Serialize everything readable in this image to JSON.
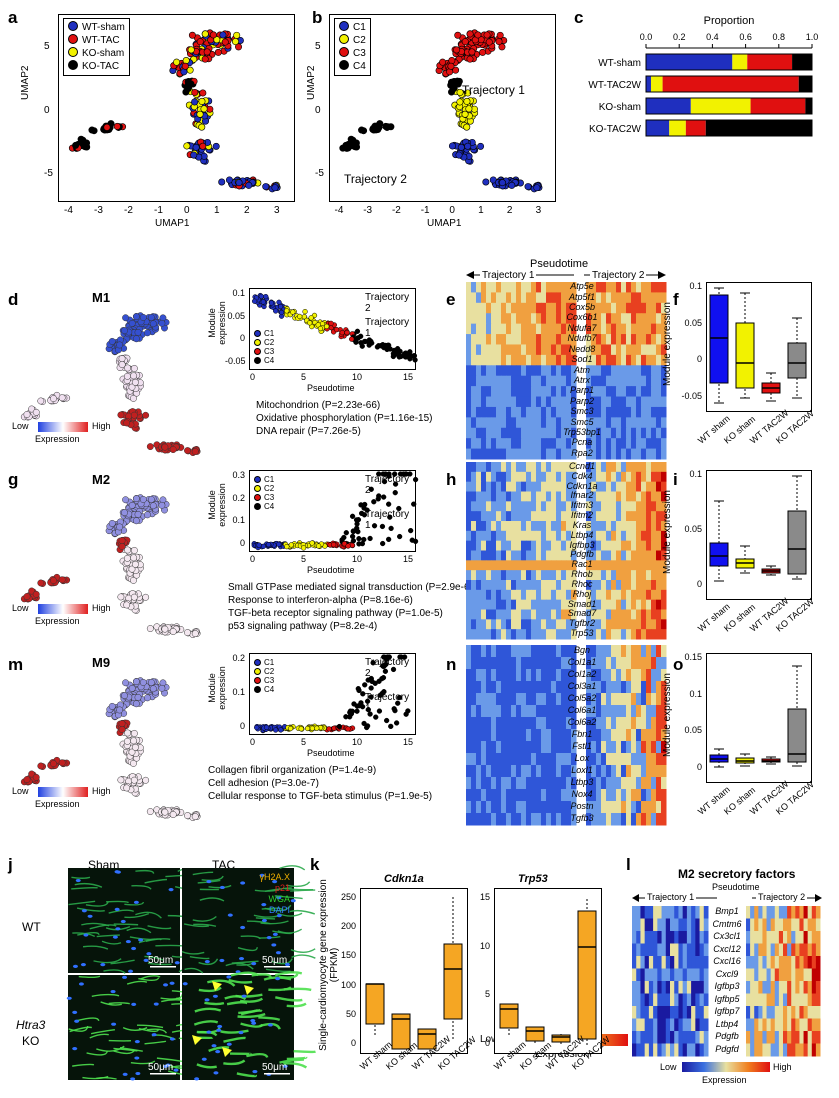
{
  "panels": {
    "a": "a",
    "b": "b",
    "c": "c",
    "d": "d",
    "e": "e",
    "f": "f",
    "g": "g",
    "h": "h",
    "i": "i",
    "m": "m",
    "n": "n",
    "o": "o",
    "j": "j",
    "k": "k",
    "l": "l"
  },
  "umap": {
    "xlabel": "UMAP1",
    "ylabel": "UMAP2",
    "xticks": [
      "-4",
      "-3",
      "-2",
      "-1",
      "0",
      "1",
      "2",
      "3"
    ],
    "yticks": [
      "5",
      "0",
      "-5"
    ],
    "legend_a": [
      {
        "label": "WT-sham",
        "color": "#1f2fbf"
      },
      {
        "label": "WT-TAC",
        "color": "#e01010"
      },
      {
        "label": "KO-sham",
        "color": "#f2f200"
      },
      {
        "label": "KO-TAC",
        "color": "#000000"
      }
    ],
    "legend_b": [
      {
        "label": "C1",
        "color": "#1f2fbf"
      },
      {
        "label": "C2",
        "color": "#f2f200"
      },
      {
        "label": "C3",
        "color": "#e01010"
      },
      {
        "label": "C4",
        "color": "#000000"
      }
    ],
    "traj1": "Trajectory 1",
    "traj2": "Trajectory 2"
  },
  "chart_data": [
    {
      "type": "bar",
      "title": "Proportion",
      "categories": [
        "WT-sham",
        "WT-TAC2W",
        "KO-sham",
        "KO-TAC2W"
      ],
      "xticks": [
        "0.0",
        "0.2",
        "0.4",
        "0.6",
        "0.8",
        "1.0"
      ],
      "xlim": [
        0,
        1
      ],
      "series": [
        {
          "name": "C1",
          "color": "#1f2fbf",
          "values": [
            0.52,
            0.03,
            0.27,
            0.14
          ]
        },
        {
          "name": "C2",
          "color": "#f2f200",
          "values": [
            0.09,
            0.07,
            0.36,
            0.1
          ]
        },
        {
          "name": "C3",
          "color": "#e01010",
          "values": [
            0.27,
            0.82,
            0.33,
            0.12
          ]
        },
        {
          "name": "C4",
          "color": "#000000",
          "values": [
            0.12,
            0.08,
            0.04,
            0.64
          ]
        }
      ]
    }
  ],
  "modules": [
    {
      "name": "M1",
      "ylabel": "Module expression",
      "yticks": [
        "0.1",
        "0.05",
        "0",
        "-0.05"
      ],
      "xticks": [
        "0",
        "5",
        "10",
        "15"
      ],
      "xlabel": "Pseudotime",
      "traj2": "Trajectory 2",
      "traj1": "Trajectory 1",
      "legend": [
        "C1",
        "C2",
        "C3",
        "C4"
      ],
      "go": [
        "Mitochondrion (P=2.23e-66)",
        "Oxidative phosphorylation (P=1.16e-15)",
        "DNA repair (P=7.26e-5)"
      ],
      "genes": [
        "Atp5e",
        "Atp5f1",
        "Cox5b",
        "Cox6b1",
        "Ndufa7",
        "Ndufb7",
        "Nedd8",
        "Sod1",
        "Atm",
        "Atrx",
        "Parp1",
        "Parp2",
        "Smc3",
        "Smc5",
        "Trp53bp1",
        "Pcna",
        "Rpa2"
      ],
      "box_yticks": [
        "0.1",
        "0.05",
        "0",
        "-0.05"
      ]
    },
    {
      "name": "M2",
      "ylabel": "Module expression",
      "yticks": [
        "0.3",
        "0.2",
        "0.1",
        "0"
      ],
      "xticks": [
        "0",
        "5",
        "10",
        "15"
      ],
      "xlabel": "Pseudotime",
      "traj2": "Trajectory 2",
      "traj1": "Trajectory 1",
      "legend": [
        "C1",
        "C2",
        "C3",
        "C4"
      ],
      "go": [
        "Small GTPase mediated signal transduction (P=2.9e-6)",
        "Response to interferon-alpha (P=8.16e-6)",
        "TGF-beta receptor signaling pathway (P=1.0e-5)",
        "p53 signaling pathway (P=8.2e-4)"
      ],
      "genes": [
        "Ccnd1",
        "Cdk4",
        "Cdkn1a",
        "Ifnar2",
        "Ifitm3",
        "Ifitm2",
        "Kras",
        "Ltbp4",
        "Igfbp3",
        "Pdgfb",
        "Rac1",
        "Rhob",
        "Rhoc",
        "Rhoj",
        "Smad1",
        "Smad7",
        "Tgfbr2",
        "Trp53"
      ],
      "box_yticks": [
        "0.1",
        "0.05",
        "0"
      ]
    },
    {
      "name": "M9",
      "ylabel": "Module expression",
      "yticks": [
        "0.2",
        "0.1",
        "0"
      ],
      "xticks": [
        "0",
        "5",
        "10",
        "15"
      ],
      "xlabel": "Pseudotime",
      "traj2": "Trajectory 2",
      "traj1": "Trajectory 1",
      "legend": [
        "C1",
        "C2",
        "C3",
        "C4"
      ],
      "go": [
        "Collagen fibril organization (P=1.4e-9)",
        "Cell adhesion (P=3.0e-7)",
        "Cellular response to TGF-beta stimulus (P=1.9e-5)"
      ],
      "genes": [
        "Bgn",
        "Col1a1",
        "Col1a2",
        "Col3a1",
        "Col5a2",
        "Col6a1",
        "Col6a2",
        "Fbn1",
        "Fstl1",
        "Lox",
        "Loxl1",
        "Ltbp3",
        "Nox4",
        "Postn",
        "Tgfb3"
      ],
      "box_yticks": [
        "0.15",
        "0.1",
        "0.05",
        "0"
      ]
    }
  ],
  "heatmap_header": {
    "title": "Pseudotime",
    "traj1": "Trajectory 1",
    "traj2": "Trajectory 2"
  },
  "expr_scale": {
    "low": "Low",
    "high": "High",
    "label": "Expression"
  },
  "box_groups": [
    "WT sham",
    "KO sham",
    "WT TAC2W",
    "KO TAC2W"
  ],
  "box_ylabel": "Module expression",
  "panel_j": {
    "col1": "Sham",
    "col2": "TAC",
    "row1": "WT",
    "row2a": "Htra3",
    "row2b": "KO",
    "stains": [
      {
        "label": "γH2A.X",
        "color": "#f0b000"
      },
      {
        "label": "p21",
        "color": "#e02020"
      },
      {
        "label": "WGA",
        "color": "#30d030"
      },
      {
        "label": "DAPI",
        "color": "#3080ff"
      }
    ],
    "scale": "50μm"
  },
  "panel_k": {
    "ylabel": "Single-cardiomyocyte gene expression (FPKM)",
    "plot1": {
      "title": "Cdkn1a",
      "yticks": [
        "250",
        "200",
        "150",
        "100",
        "50",
        "0"
      ]
    },
    "plot2": {
      "title": "Trp53",
      "yticks": [
        "15",
        "10",
        "5",
        "0"
      ]
    },
    "groups": [
      "WT sham",
      "KO sham",
      "WT TAC2W",
      "KO TAC2W"
    ]
  },
  "panel_l": {
    "title": "M2 secretory factors",
    "sub": "Pseudotime",
    "traj1": "Trajectory 1",
    "traj2": "Trajectory 2",
    "genes": [
      "Bmp1",
      "Cmtm6",
      "Cx3cl1",
      "Cxcl12",
      "Cxcl16",
      "Cxcl9",
      "Igfbp3",
      "Igfbp5",
      "Igfbp7",
      "Ltbp4",
      "Pdgfb",
      "Pdgfd"
    ],
    "low": "Low",
    "high": "High",
    "label": "Expression"
  }
}
